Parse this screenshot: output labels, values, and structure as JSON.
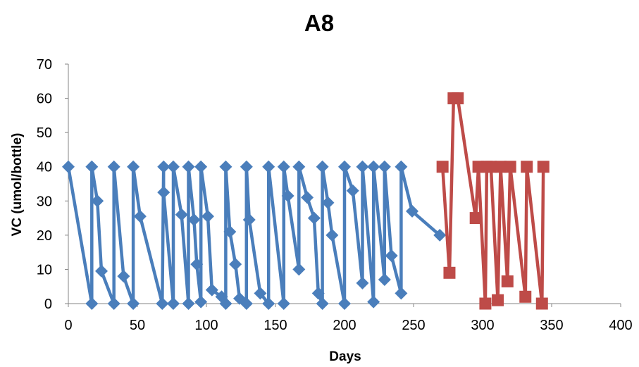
{
  "chart_data": {
    "type": "line",
    "title": "A8",
    "xlabel": "Days",
    "ylabel": "VC (umol/bottle)",
    "xlim": [
      0,
      400
    ],
    "ylim": [
      0,
      70
    ],
    "x_ticks": [
      "0",
      "50",
      "100",
      "150",
      "200",
      "250",
      "300",
      "350",
      "400"
    ],
    "y_ticks": [
      "0",
      "10",
      "20",
      "30",
      "40",
      "50",
      "60",
      "70"
    ],
    "grid": false,
    "legend": "none",
    "series": [
      {
        "color": "#4a7ebb",
        "marker": "diamond",
        "x": [
          0,
          17,
          17,
          21,
          24,
          33,
          33,
          40,
          47,
          47,
          52,
          68,
          69,
          69,
          76,
          76,
          82,
          87,
          87,
          91,
          93,
          96,
          96,
          101,
          104,
          111,
          114,
          114,
          117,
          121,
          124,
          129,
          129,
          131,
          139,
          145,
          145,
          156,
          156,
          159,
          167,
          167,
          173,
          178,
          181,
          184,
          184,
          188,
          191,
          200,
          200,
          206,
          213,
          213,
          221,
          221,
          229,
          229,
          234,
          241,
          241,
          249,
          269
        ],
        "y": [
          40,
          0,
          40,
          30,
          9.5,
          0,
          40,
          8,
          0,
          40,
          25.5,
          0,
          40,
          32.5,
          0,
          40,
          26,
          0,
          40,
          24.5,
          11.5,
          0.5,
          40,
          25.5,
          4,
          2,
          0,
          40,
          21,
          11.5,
          1.5,
          0,
          40,
          24.5,
          3,
          0,
          40,
          0,
          40,
          31.5,
          10,
          40,
          31,
          25,
          3,
          0,
          40,
          29.5,
          20,
          0,
          40,
          33,
          6,
          40,
          0.5,
          40,
          7,
          40,
          14,
          3,
          40,
          27,
          20
        ]
      },
      {
        "color": "#be4b48",
        "marker": "square",
        "x": [
          271,
          276,
          279,
          282,
          295,
          297,
          302,
          303,
          306,
          311,
          313,
          318,
          320,
          331,
          332,
          343,
          344
        ],
        "y": [
          40,
          9,
          60,
          60,
          25,
          40,
          0,
          40,
          40,
          1,
          40,
          6.5,
          40,
          2,
          40,
          0,
          40
        ]
      }
    ]
  }
}
